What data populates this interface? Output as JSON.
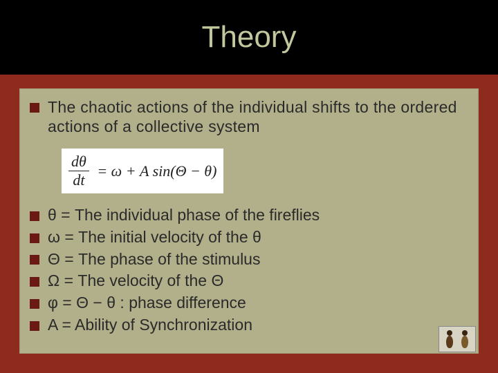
{
  "colors": {
    "slide_bg": "#8f2a1e",
    "title_bar_bg": "#000000",
    "title_text": "#c3c79e",
    "content_bg": "#b2b08a",
    "content_border": "#a19f7a",
    "bullet": "#6a1a12",
    "body_text": "#2a2a2a",
    "equation_bg": "#ffffff"
  },
  "typography": {
    "title_font": "Comic Sans MS",
    "title_size_pt": 33,
    "body_font": "Verdana",
    "body_size_pt": 17
  },
  "title": "Theory",
  "intro": "The chaotic actions of the individual shifts to the ordered actions of a collective system",
  "equation": {
    "numerator": "dθ",
    "denominator": "dt",
    "rhs": "= ω + A sin(Θ − θ)"
  },
  "definitions": [
    "θ = The individual phase of the fireflies",
    "ω = The initial velocity of the θ",
    "Θ = The phase of the stimulus",
    "Ω = The velocity of the Θ",
    "φ = Θ − θ : phase difference",
    "A = Ability of Synchronization"
  ],
  "corner_image": "fireflies-thumbnail"
}
